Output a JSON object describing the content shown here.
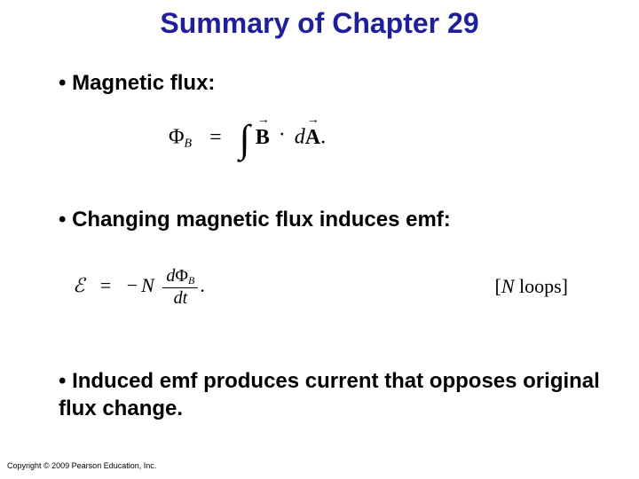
{
  "title": {
    "text": "Summary of Chapter 29",
    "color": "#1f1f9c",
    "fontsize": 32
  },
  "bullets": {
    "b1": "• Magnetic flux:",
    "b2": "• Changing magnetic flux induces emf:",
    "b3": "• Induced emf produces current that opposes original flux change."
  },
  "equations": {
    "flux": {
      "lhs_symbol": "Φ",
      "lhs_sub": "B",
      "equals": "=",
      "integral": "∫",
      "vec1": "B",
      "dot": "·",
      "diff": "d",
      "vec2": "A",
      "period": "."
    },
    "faraday": {
      "emf_symbol": "ℰ",
      "equals": "=",
      "minus": "−",
      "N": "N",
      "num_d": "d",
      "num_phi": "Φ",
      "num_sub": "B",
      "den": "dt",
      "period": "."
    },
    "note": {
      "open": "[",
      "N": "N",
      "rest": " loops]",
      "close": ""
    }
  },
  "copyright": "Copyright © 2009 Pearson Education, Inc.",
  "styling": {
    "background": "#ffffff",
    "bullet_color": "#000000",
    "bullet_fontsize": 24,
    "eq_font": "Times New Roman",
    "title_font": "Arial"
  }
}
